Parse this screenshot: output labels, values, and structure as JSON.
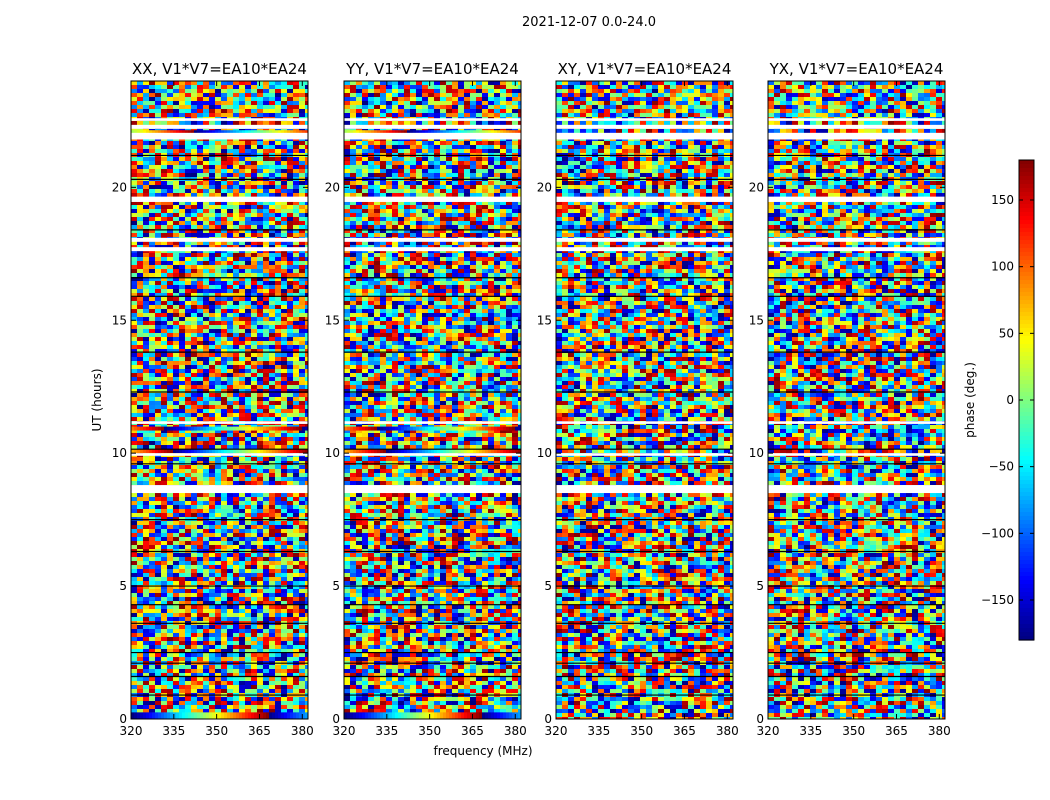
{
  "suptitle": "2021-12-07 0.0-24.0",
  "chart_data": {
    "type": "heatmap",
    "colormap": "jet",
    "xlabel": "frequency (MHz)",
    "ylabel": "UT (hours)",
    "xlim": [
      320,
      382
    ],
    "ylim": [
      0,
      24
    ],
    "xticks": [
      "320",
      "335",
      "350",
      "365",
      "380"
    ],
    "xtick_values": [
      320,
      335,
      350,
      365,
      380
    ],
    "yticks": [
      "0",
      "5",
      "10",
      "15",
      "20"
    ],
    "ytick_values": [
      0,
      5,
      10,
      15,
      20
    ],
    "panels": [
      {
        "title": "XX, V1*V7=EA10*EA24",
        "pol": "XX"
      },
      {
        "title": "YY, V1*V7=EA10*EA24",
        "pol": "YY"
      },
      {
        "title": "XY, V1*V7=EA10*EA24",
        "pol": "XY"
      },
      {
        "title": "YX, V1*V7=EA10*EA24",
        "pol": "YX"
      }
    ],
    "colorbar": {
      "label": "phase (deg.)",
      "min": -180,
      "max": 180,
      "ticks": [
        "150",
        "100",
        "50",
        "0",
        "−50",
        "−100",
        "−150"
      ],
      "tick_values": [
        150,
        100,
        50,
        0,
        -50,
        -100,
        -150
      ]
    }
  }
}
